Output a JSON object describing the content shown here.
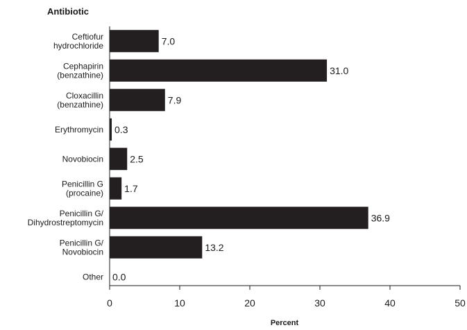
{
  "chart_data": {
    "type": "bar",
    "orientation": "horizontal",
    "ylabel": "Antibiotic",
    "xlabel": "Percent",
    "categories": [
      [
        "Ceftiofur",
        "hydrochloride"
      ],
      [
        "Cephapirin",
        "(benzathine)"
      ],
      [
        "Cloxacillin",
        "(benzathine)"
      ],
      [
        "Erythromycin"
      ],
      [
        "Novobiocin"
      ],
      [
        "Penicillin G",
        "(procaine)"
      ],
      [
        "Penicillin G/",
        "Dihydrostreptomycin"
      ],
      [
        "Penicillin G/",
        "Novobiocin"
      ],
      [
        "Other"
      ]
    ],
    "values": [
      7.0,
      31.0,
      7.9,
      0.3,
      2.5,
      1.7,
      36.9,
      13.2,
      0.0
    ],
    "value_labels": [
      "7.0",
      "31.0",
      "7.9",
      "0.3",
      "2.5",
      "1.7",
      "36.9",
      "13.2",
      "0.0"
    ],
    "xlim": [
      0,
      50
    ],
    "xticks": [
      0,
      10,
      20,
      30,
      40,
      50
    ],
    "grid": false,
    "bar_color": "#231f20"
  }
}
